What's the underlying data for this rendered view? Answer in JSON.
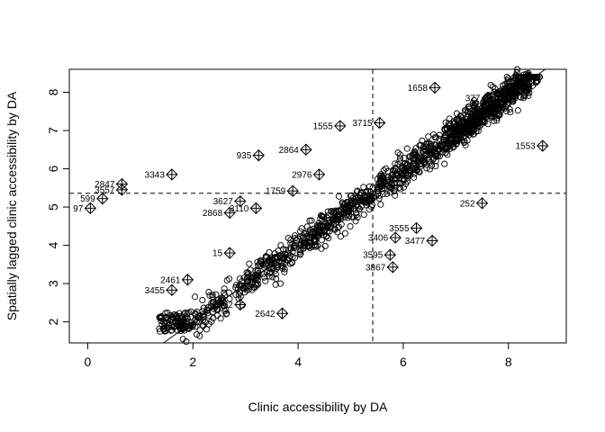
{
  "chart_data": {
    "type": "scatter",
    "xlabel": "Clinic accessibility by DA",
    "ylabel": "Spatially lagged clinic accessibility by DA",
    "xlim": [
      -0.35,
      9.1
    ],
    "ylim": [
      1.45,
      8.6
    ],
    "x_ticks": [
      0,
      2,
      4,
      6,
      8
    ],
    "y_ticks": [
      2,
      3,
      4,
      5,
      6,
      7,
      8
    ],
    "mean_x": 5.42,
    "mean_y": 5.36,
    "regression_line": {
      "intercept": 0.03,
      "slope": 0.985
    },
    "marker": "open circle",
    "influential_marker": "diamond with cross",
    "grid": false,
    "legend": "none",
    "labeled_points": [
      {
        "id": "97",
        "x": 0.05,
        "y": 4.97
      },
      {
        "id": "599",
        "x": 0.28,
        "y": 5.22
      },
      {
        "id": "2847",
        "x": 0.65,
        "y": 5.6
      },
      {
        "id": "3557",
        "x": 0.65,
        "y": 5.45
      },
      {
        "id": "3343",
        "x": 1.6,
        "y": 5.85
      },
      {
        "id": "935",
        "x": 3.25,
        "y": 6.35
      },
      {
        "id": "2864",
        "x": 4.15,
        "y": 6.5
      },
      {
        "id": "1555",
        "x": 4.8,
        "y": 7.12
      },
      {
        "id": "3715",
        "x": 5.55,
        "y": 7.2
      },
      {
        "id": "1658",
        "x": 6.6,
        "y": 8.12
      },
      {
        "id": "377",
        "x": 7.6,
        "y": 7.85
      },
      {
        "id": "1553",
        "x": 8.65,
        "y": 6.6
      },
      {
        "id": "252",
        "x": 7.5,
        "y": 5.1
      },
      {
        "id": "3627",
        "x": 2.9,
        "y": 5.15
      },
      {
        "id": "2868",
        "x": 2.7,
        "y": 4.85
      },
      {
        "id": "3110",
        "x": 3.2,
        "y": 4.97
      },
      {
        "id": "2976",
        "x": 4.4,
        "y": 5.85
      },
      {
        "id": "1759",
        "x": 3.9,
        "y": 5.42
      },
      {
        "id": "15",
        "x": 2.7,
        "y": 3.8
      },
      {
        "id": "2461",
        "x": 1.9,
        "y": 3.1
      },
      {
        "id": "3455",
        "x": 1.6,
        "y": 2.83
      },
      {
        "id": "2642",
        "x": 3.7,
        "y": 2.22
      },
      {
        "id": "2462",
        "x": 2.9,
        "y": 2.45
      },
      {
        "id": "3555",
        "x": 6.25,
        "y": 4.45
      },
      {
        "id": "3477",
        "x": 6.55,
        "y": 4.12
      },
      {
        "id": "3406",
        "x": 5.85,
        "y": 4.2
      },
      {
        "id": "3595",
        "x": 5.75,
        "y": 3.75
      },
      {
        "id": "3867",
        "x": 5.8,
        "y": 3.43
      }
    ]
  }
}
